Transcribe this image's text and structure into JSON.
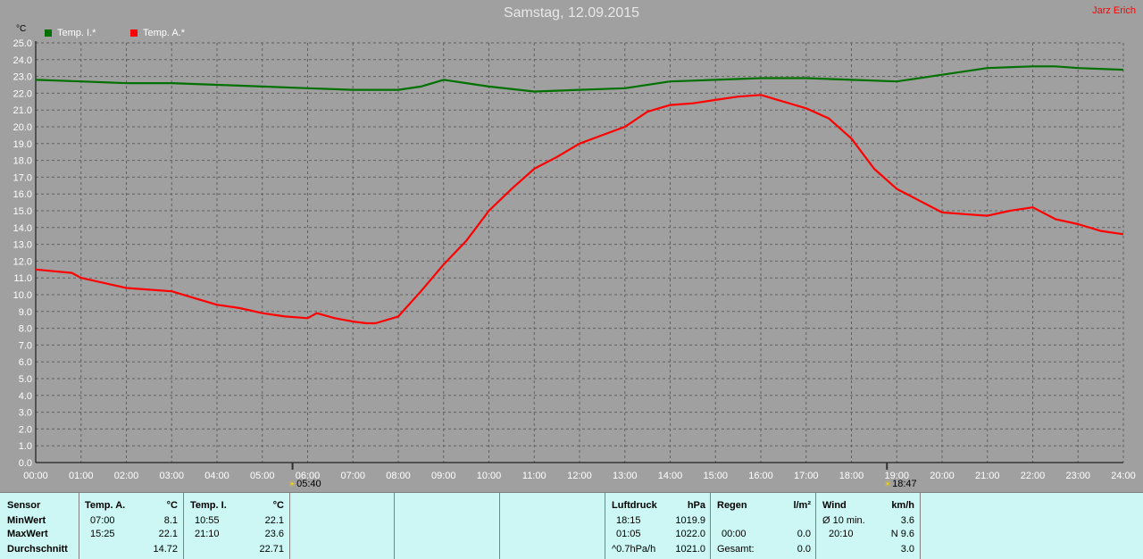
{
  "header": {
    "title": "Samstag, 12.09.2015",
    "brand": "Jarz Erich",
    "unit": "°C"
  },
  "legend": [
    {
      "label": "Temp. I.*",
      "color": "#007000"
    },
    {
      "label": "Temp. A.*",
      "color": "#ff0000"
    }
  ],
  "sun": {
    "sunrise": "05:40",
    "sunset": "18:47"
  },
  "chart_data": {
    "type": "line",
    "xlim": [
      0,
      24
    ],
    "ylim": [
      0,
      25
    ],
    "x_ticks": [
      "00:00",
      "01:00",
      "02:00",
      "03:00",
      "04:00",
      "05:00",
      "06:00",
      "07:00",
      "08:00",
      "09:00",
      "10:00",
      "11:00",
      "12:00",
      "13:00",
      "14:00",
      "15:00",
      "16:00",
      "17:00",
      "18:00",
      "19:00",
      "20:00",
      "21:00",
      "22:00",
      "23:00",
      "24:00"
    ],
    "y_ticks": [
      "0.0",
      "1.0",
      "2.0",
      "3.0",
      "4.0",
      "5.0",
      "6.0",
      "7.0",
      "8.0",
      "9.0",
      "10.0",
      "11.0",
      "12.0",
      "13.0",
      "14.0",
      "15.0",
      "16.0",
      "17.0",
      "18.0",
      "19.0",
      "20.0",
      "21.0",
      "22.0",
      "23.0",
      "24.0",
      "25.0"
    ],
    "grid": true,
    "series": [
      {
        "name": "Temp. I.*",
        "color": "#007000",
        "x": [
          0,
          1,
          2,
          3,
          4,
          5,
          6,
          7,
          8,
          8.5,
          9,
          9.5,
          10,
          11,
          12,
          13,
          14,
          15,
          16,
          17,
          18,
          19,
          20,
          21,
          22,
          22.5,
          23,
          24
        ],
        "y": [
          22.8,
          22.7,
          22.6,
          22.6,
          22.5,
          22.4,
          22.3,
          22.2,
          22.2,
          22.4,
          22.8,
          22.6,
          22.4,
          22.1,
          22.2,
          22.3,
          22.7,
          22.8,
          22.9,
          22.9,
          22.8,
          22.7,
          23.1,
          23.5,
          23.6,
          23.6,
          23.5,
          23.4
        ]
      },
      {
        "name": "Temp. A.*",
        "color": "#ff0000",
        "x": [
          0,
          0.8,
          1,
          1.5,
          2,
          2.5,
          3,
          3.5,
          4,
          4.5,
          5,
          5.5,
          6,
          6.2,
          6.6,
          7,
          7.3,
          7.5,
          8,
          8.5,
          9,
          9.5,
          10,
          10.5,
          11,
          11.5,
          12,
          12.5,
          13,
          13.5,
          14,
          14.5,
          15,
          15.5,
          16,
          16.5,
          17,
          17.5,
          18,
          18.5,
          19,
          19.5,
          20,
          20.5,
          21,
          21.5,
          22,
          22.5,
          23,
          23.5,
          24
        ],
        "y": [
          11.5,
          11.3,
          11.0,
          10.7,
          10.4,
          10.3,
          10.2,
          9.8,
          9.4,
          9.2,
          8.9,
          8.7,
          8.6,
          8.9,
          8.6,
          8.4,
          8.3,
          8.3,
          8.7,
          10.2,
          11.8,
          13.2,
          15.0,
          16.3,
          17.5,
          18.2,
          19.0,
          19.5,
          20.0,
          20.9,
          21.3,
          21.4,
          21.6,
          21.8,
          21.9,
          21.5,
          21.1,
          20.5,
          19.3,
          17.5,
          16.3,
          15.6,
          14.9,
          14.8,
          14.7,
          15.0,
          15.2,
          14.5,
          14.2,
          13.8,
          13.6
        ]
      }
    ]
  },
  "table": {
    "sensor": {
      "header": "Sensor",
      "rows": [
        "MinWert",
        "MaxWert",
        "Durchschnitt"
      ]
    },
    "temp_a": {
      "header": "Temp. A.",
      "unit": "°C",
      "min_time": "07:00",
      "min": "8.1",
      "max_time": "15:25",
      "max": "22.1",
      "avg": "14.72"
    },
    "temp_i": {
      "header": "Temp. I.",
      "unit": "°C",
      "min_time": "10:55",
      "min": "22.1",
      "max_time": "21:10",
      "max": "23.6",
      "avg": "22.71"
    },
    "pressure": {
      "header": "Luftdruck",
      "unit": "hPa",
      "min_time": "18:15",
      "min": "1019.9",
      "max_time": "01:05",
      "max": "1022.0",
      "trend": "^0.7hPa/h",
      "current": "1021.0"
    },
    "rain": {
      "header": "Regen",
      "unit": "l/m²",
      "max_time": "00:00",
      "max": "0.0",
      "total_label": "Gesamt:",
      "total": "0.0"
    },
    "wind": {
      "header": "Wind",
      "unit": "km/h",
      "avg_label": "Ø 10 min.",
      "avg": "3.6",
      "max_time": "20:10",
      "max": "N 9.6",
      "extra": "3.0"
    }
  }
}
